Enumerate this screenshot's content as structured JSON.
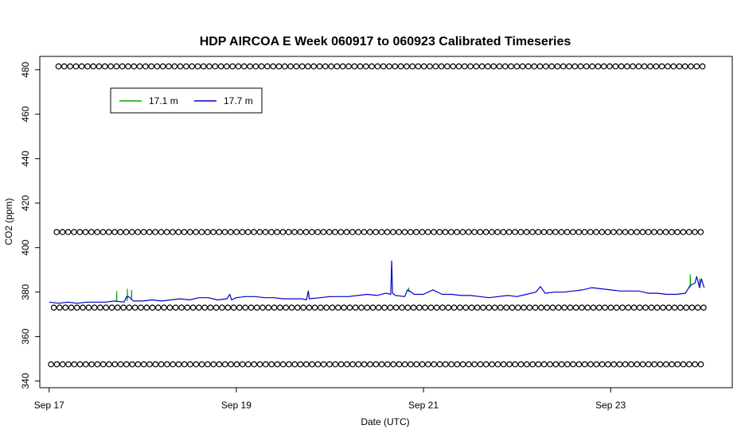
{
  "chart_data": {
    "type": "line",
    "title": "HDP AIRCOA E  Week 060917 to 060923  Calibrated Timeseries",
    "xlabel": "Date (UTC)",
    "ylabel": "CO2 (ppm)",
    "x_unit": "days since Sep 17 00:00 UTC",
    "xlim": [
      -0.1,
      7.3
    ],
    "ylim": [
      337,
      486
    ],
    "x_ticks": [
      {
        "value": 0,
        "label": "Sep 17"
      },
      {
        "value": 2,
        "label": "Sep 19"
      },
      {
        "value": 4,
        "label": "Sep 21"
      },
      {
        "value": 6,
        "label": "Sep 23"
      }
    ],
    "y_ticks": [
      340,
      360,
      380,
      400,
      420,
      440,
      460,
      480
    ],
    "grid": false,
    "legend": {
      "placement": "top-left",
      "entries": [
        {
          "label": "17.1 m",
          "color": "#00aa00"
        },
        {
          "label": "17.7 m",
          "color": "#0000cc"
        }
      ]
    },
    "series": [
      {
        "name": "17.1 m",
        "color": "#00aa00",
        "x": [
          0.72,
          0.721,
          0.723,
          0.835,
          0.836,
          0.838,
          0.88,
          0.881,
          0.883,
          3.84,
          3.841,
          3.845,
          6.85,
          6.851,
          6.855,
          6.95,
          6.951,
          6.955
        ],
        "y": [
          375.5,
          380.5,
          376.5,
          376,
          381.5,
          377,
          377,
          381,
          377.5,
          381,
          382,
          380,
          382,
          388,
          383,
          383,
          386,
          382
        ]
      },
      {
        "name": "17.7 m",
        "color": "#0000cc",
        "x": [
          0,
          0.1,
          0.2,
          0.3,
          0.4,
          0.5,
          0.6,
          0.7,
          0.8,
          0.83,
          0.85,
          0.9,
          1.0,
          1.1,
          1.2,
          1.3,
          1.4,
          1.5,
          1.6,
          1.7,
          1.8,
          1.9,
          1.93,
          1.95,
          2.0,
          2.1,
          2.2,
          2.3,
          2.4,
          2.5,
          2.6,
          2.7,
          2.75,
          2.77,
          2.78,
          2.9,
          3.0,
          3.1,
          3.2,
          3.3,
          3.4,
          3.5,
          3.6,
          3.65,
          3.66,
          3.67,
          3.7,
          3.8,
          3.83,
          3.87,
          3.9,
          4.0,
          4.1,
          4.2,
          4.3,
          4.4,
          4.5,
          4.6,
          4.7,
          4.8,
          4.9,
          5.0,
          5.1,
          5.2,
          5.25,
          5.3,
          5.4,
          5.5,
          5.6,
          5.7,
          5.8,
          5.9,
          6.0,
          6.1,
          6.2,
          6.3,
          6.4,
          6.5,
          6.6,
          6.7,
          6.8,
          6.85,
          6.9,
          6.92,
          6.95,
          6.97,
          7.0
        ],
        "y": [
          375.5,
          375,
          375.5,
          375,
          375.5,
          375.5,
          375.5,
          376,
          375.5,
          378,
          378,
          376,
          376,
          376.5,
          376,
          376.5,
          377,
          376.5,
          377.5,
          377.5,
          376.5,
          377,
          379,
          376.5,
          377.5,
          378,
          378,
          377.5,
          377.5,
          377,
          377,
          377,
          376.5,
          380.5,
          377,
          377.5,
          378,
          378,
          378,
          378.5,
          379,
          378.5,
          379.5,
          379,
          394,
          379.5,
          378.5,
          378,
          381,
          380,
          379,
          379,
          381,
          379,
          379,
          378.5,
          378.5,
          378,
          377.5,
          378,
          378.5,
          378,
          379,
          380,
          382.5,
          379.5,
          380,
          380,
          380.5,
          381,
          382,
          381.5,
          381,
          380.5,
          380.5,
          380.5,
          379.5,
          379.5,
          379,
          379,
          379.5,
          383,
          384,
          387,
          382,
          386,
          382
        ]
      }
    ],
    "reference_rows": [
      {
        "y": 481.5,
        "x_start": 0.1,
        "x_end": 7.0,
        "marker": "circle"
      },
      {
        "y": 407,
        "x_start": 0.08,
        "x_end": 7.0,
        "marker": "circle"
      },
      {
        "y": 373,
        "x_start": 0.05,
        "x_end": 7.0,
        "marker": "circle"
      },
      {
        "y": 347.5,
        "x_start": 0.02,
        "x_end": 7.0,
        "marker": "circle"
      }
    ]
  }
}
